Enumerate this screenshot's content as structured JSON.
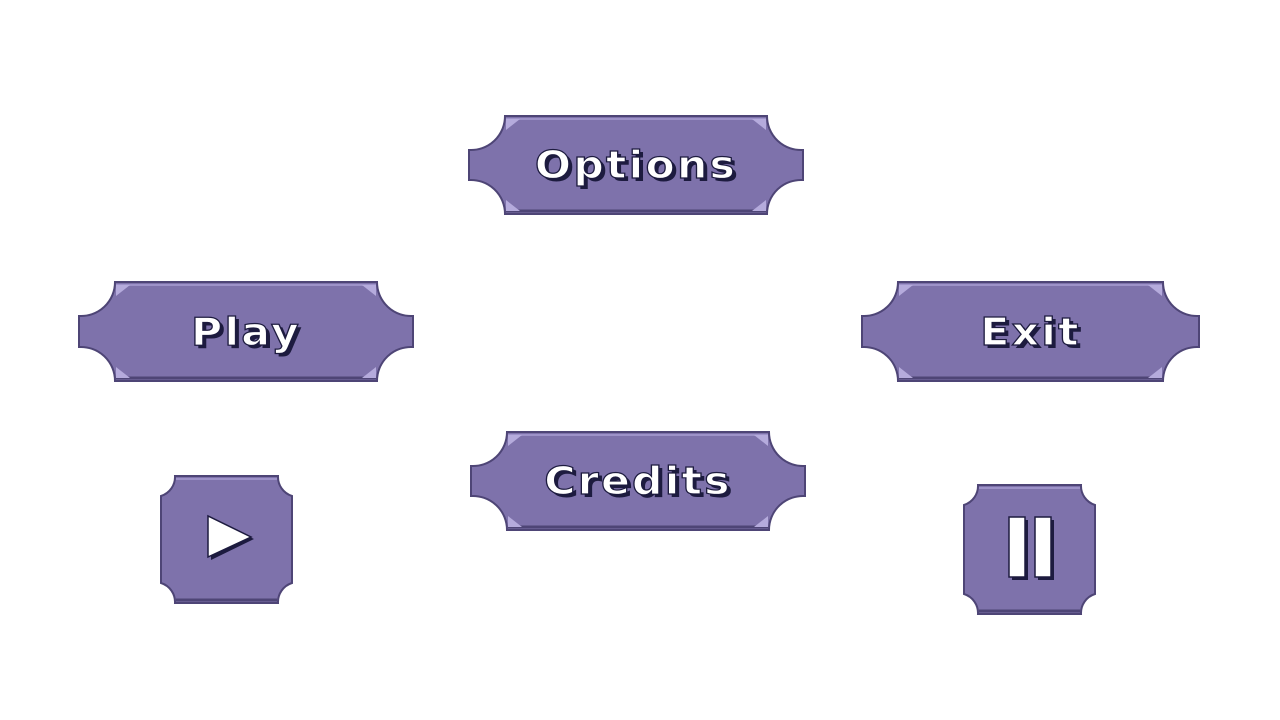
{
  "menu": {
    "options_label": "Options",
    "play_label": "Play",
    "exit_label": "Exit",
    "credits_label": "Credits"
  },
  "icons": {
    "play": "play-icon",
    "pause": "pause-icon"
  },
  "colors": {
    "button_fill": "#7e72ab",
    "button_border": "#4e4576",
    "button_highlight": "#b5abdc",
    "text_outline": "#1d1b3f",
    "text_fill": "#ffffff"
  }
}
